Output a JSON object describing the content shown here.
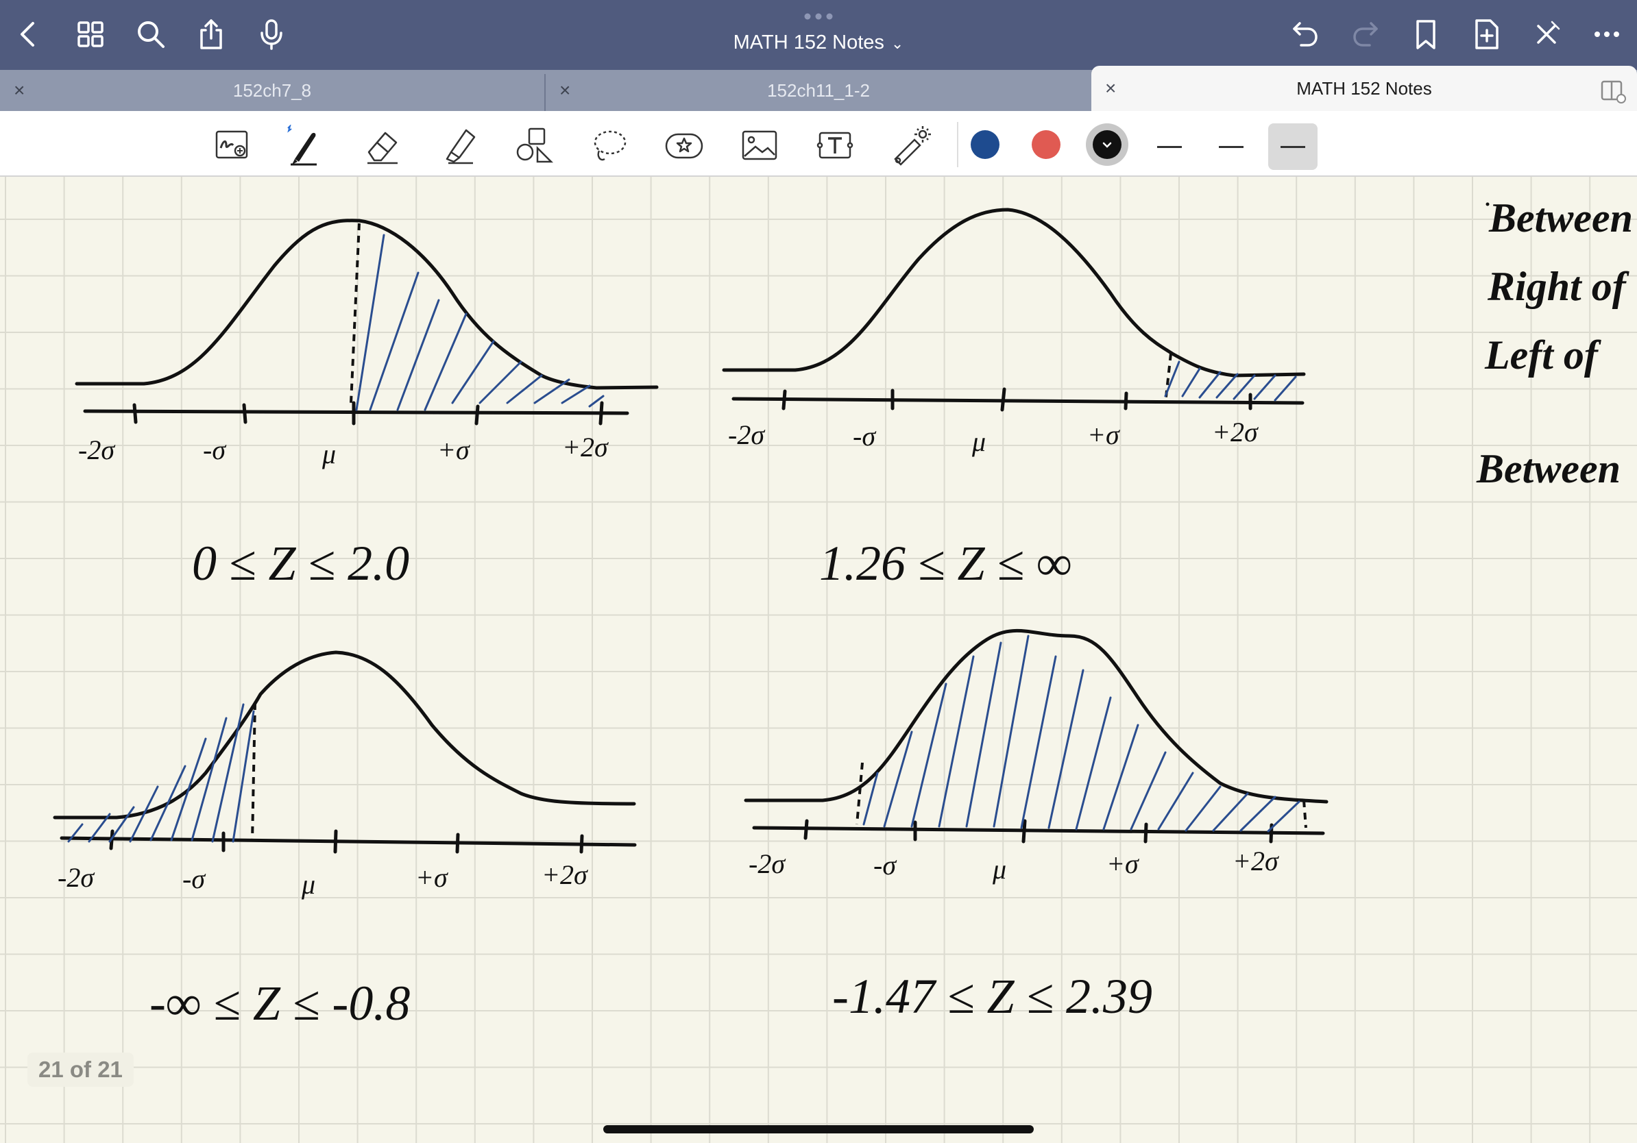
{
  "app": {
    "document_title": "MATH 152 Notes"
  },
  "tabs": [
    {
      "label": "152ch7_8",
      "active": false
    },
    {
      "label": "152ch11_1-2",
      "active": false
    },
    {
      "label": "MATH 152 Notes",
      "active": true
    }
  ],
  "top_icons": [
    "back-icon",
    "grid-icon",
    "search-icon",
    "share-icon",
    "microphone-icon",
    "undo-icon",
    "redo-icon",
    "bookmark-icon",
    "add-page-icon",
    "close-pen-icon",
    "more-icon"
  ],
  "toolbar_tools": [
    "zoom-writing-icon",
    "pen-icon",
    "eraser-icon",
    "highlighter-icon",
    "shapes-icon",
    "lasso-icon",
    "sticker-icon",
    "image-icon",
    "text-box-icon",
    "laser-pointer-icon"
  ],
  "colors": {
    "blue": "#1e4b8f",
    "red": "#e05a52",
    "black": "#111111",
    "selected_color": "black"
  },
  "stroke_widths": {
    "selected_index": 2
  },
  "notes": {
    "labels": {
      "m2s": "-2σ",
      "m1s": "-σ",
      "mu": "μ",
      "p1s": "+σ",
      "p2s": "+2σ"
    },
    "graph1_caption": "0 ≤ Z ≤ 2.0",
    "graph2_caption": "1.26 ≤ Z ≤ ∞",
    "graph3_caption": "-∞ ≤ Z ≤ -0.8",
    "graph4_caption": "-1.47 ≤ Z ≤ 2.39",
    "side_words": [
      "Between",
      "Right of",
      "Left of",
      "Between"
    ]
  },
  "page_counter": "21 of 21"
}
